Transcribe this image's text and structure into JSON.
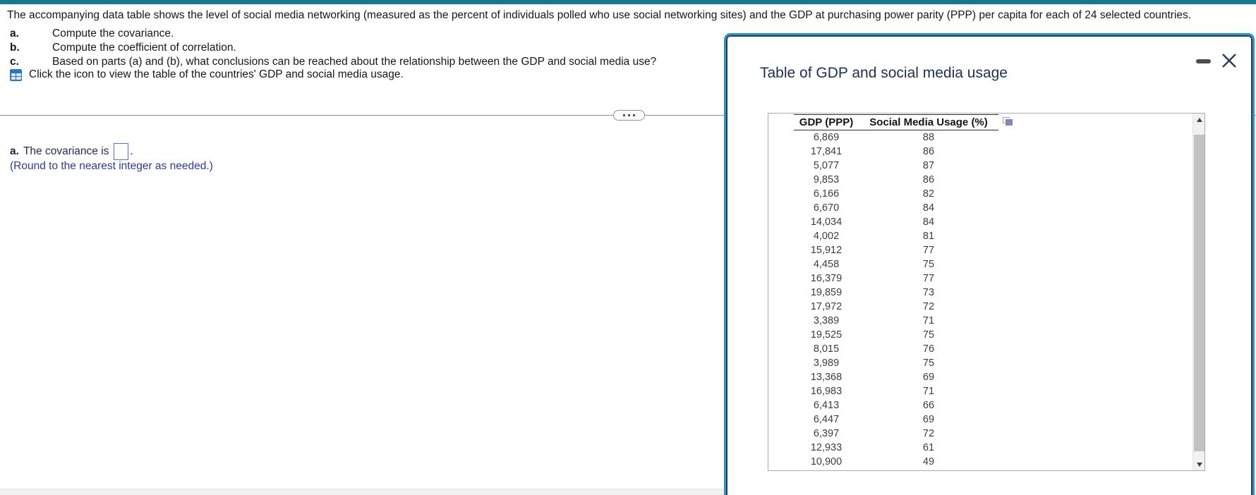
{
  "colors": {
    "teal_bar": "#15798C",
    "popup_border": "#2A93D5",
    "popup_border_inner": "#2E3B47",
    "dialog_title": "#1B3150",
    "answer_text": "#20295C",
    "note_blue": "#2B3AA0",
    "input_border": "#4F74D8",
    "panel_border": "#A9A9A9",
    "scroll_track": "#F1F1F1",
    "scroll_thumb": "#C2C2C2",
    "divider": "#8291A6",
    "table_icon_blue": "#2E74C8",
    "copy_icon": "#7D87C5"
  },
  "page": {
    "question_text": "The accompanying data table shows the level of social media networking (measured as the percent of individuals polled who use social networking sites) and the GDP at purchasing power parity (PPP) per capita for each of 24 selected countries.",
    "parts": [
      {
        "label": "a.",
        "text": "Compute the covariance."
      },
      {
        "label": "b.",
        "text": "Compute the coefficient of correlation."
      },
      {
        "label": "c.",
        "text": "Based on parts (a) and (b), what conclusions can be reached about the relationship between the GDP and social media use?"
      }
    ],
    "icon_caption": "Click the icon to view the table of the countries' GDP and social media usage.",
    "answer": {
      "label": "a.",
      "prompt": "The covariance is",
      "suffix": ".",
      "input_value": "",
      "note": "(Round to the nearest integer as needed.)"
    }
  },
  "popup": {
    "title": "Table of GDP and social media usage",
    "icons": {
      "table_view": "table-grid-icon",
      "minimize": "minus-icon",
      "close": "x-icon",
      "copy_table": "copy-icon",
      "scroll_up": "triangle-up-icon",
      "scroll_down": "triangle-down-icon",
      "divider_toggle": "ellipsis-icon"
    },
    "table": {
      "columns": [
        "GDP (PPP)",
        "Social Media Usage (%)"
      ],
      "rows": [
        [
          "6,869",
          "88"
        ],
        [
          "17,841",
          "86"
        ],
        [
          "5,077",
          "87"
        ],
        [
          "9,853",
          "86"
        ],
        [
          "6,166",
          "82"
        ],
        [
          "6,670",
          "84"
        ],
        [
          "14,034",
          "84"
        ],
        [
          "4,002",
          "81"
        ],
        [
          "15,912",
          "77"
        ],
        [
          "4,458",
          "75"
        ],
        [
          "16,379",
          "77"
        ],
        [
          "19,859",
          "73"
        ],
        [
          "17,972",
          "72"
        ],
        [
          "3,389",
          "71"
        ],
        [
          "19,525",
          "75"
        ],
        [
          "8,015",
          "76"
        ],
        [
          "3,989",
          "75"
        ],
        [
          "13,368",
          "69"
        ],
        [
          "16,983",
          "71"
        ],
        [
          "6,413",
          "66"
        ],
        [
          "6,447",
          "69"
        ],
        [
          "6,397",
          "72"
        ],
        [
          "12,933",
          "61"
        ],
        [
          "10,900",
          "49"
        ]
      ]
    }
  }
}
